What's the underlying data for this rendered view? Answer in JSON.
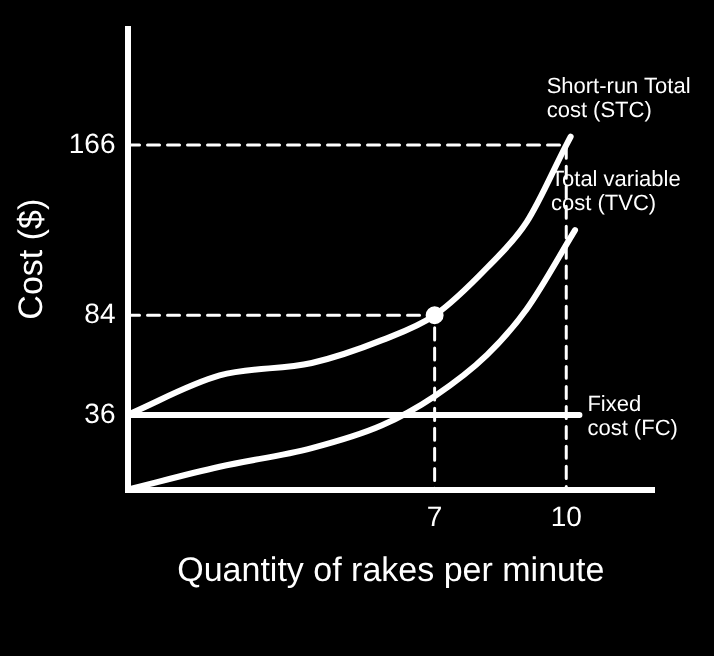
{
  "chart_data": {
    "type": "line",
    "xlabel": "Quantity of rakes per minute",
    "ylabel": "Cost ($)",
    "xlim": [
      0,
      12
    ],
    "ylim": [
      0,
      222
    ],
    "xticks": [
      7,
      10
    ],
    "yticks": [
      36,
      84,
      166
    ],
    "grid": false,
    "legend": false,
    "marker": "none",
    "line_style": "solid",
    "series": [
      {
        "name": "Short-run Total cost (STC)",
        "color": "#ffffff",
        "x": [
          0,
          2.1,
          4.2,
          5.8,
          7,
          8.2,
          9.1,
          10,
          10.1
        ],
        "values": [
          36,
          55,
          61,
          72,
          84,
          107,
          129,
          166,
          170
        ]
      },
      {
        "name": "Total variable cost (TVC)",
        "color": "#ffffff",
        "x": [
          0,
          2.1,
          4.2,
          5.8,
          7,
          8.2,
          9.1,
          10.2
        ],
        "values": [
          0,
          11,
          20,
          31,
          45,
          65,
          87,
          125
        ]
      },
      {
        "name": "Fixed cost (FC)",
        "color": "#ffffff",
        "x": [
          0,
          10.3
        ],
        "values": [
          36,
          36
        ]
      },
      {
        "color": "#ffffff",
        "line_style": "dashed",
        "x": [
          0,
          10,
          10
        ],
        "values": [
          166,
          166,
          0
        ]
      },
      {
        "color": "#ffffff",
        "line_style": "dashed",
        "x": [
          0,
          7,
          7
        ],
        "values": [
          84,
          84,
          0
        ]
      },
      {
        "type": "scatter",
        "marker": "circle",
        "color": "#ffffff",
        "x": [
          7
        ],
        "values": [
          84
        ]
      }
    ]
  }
}
